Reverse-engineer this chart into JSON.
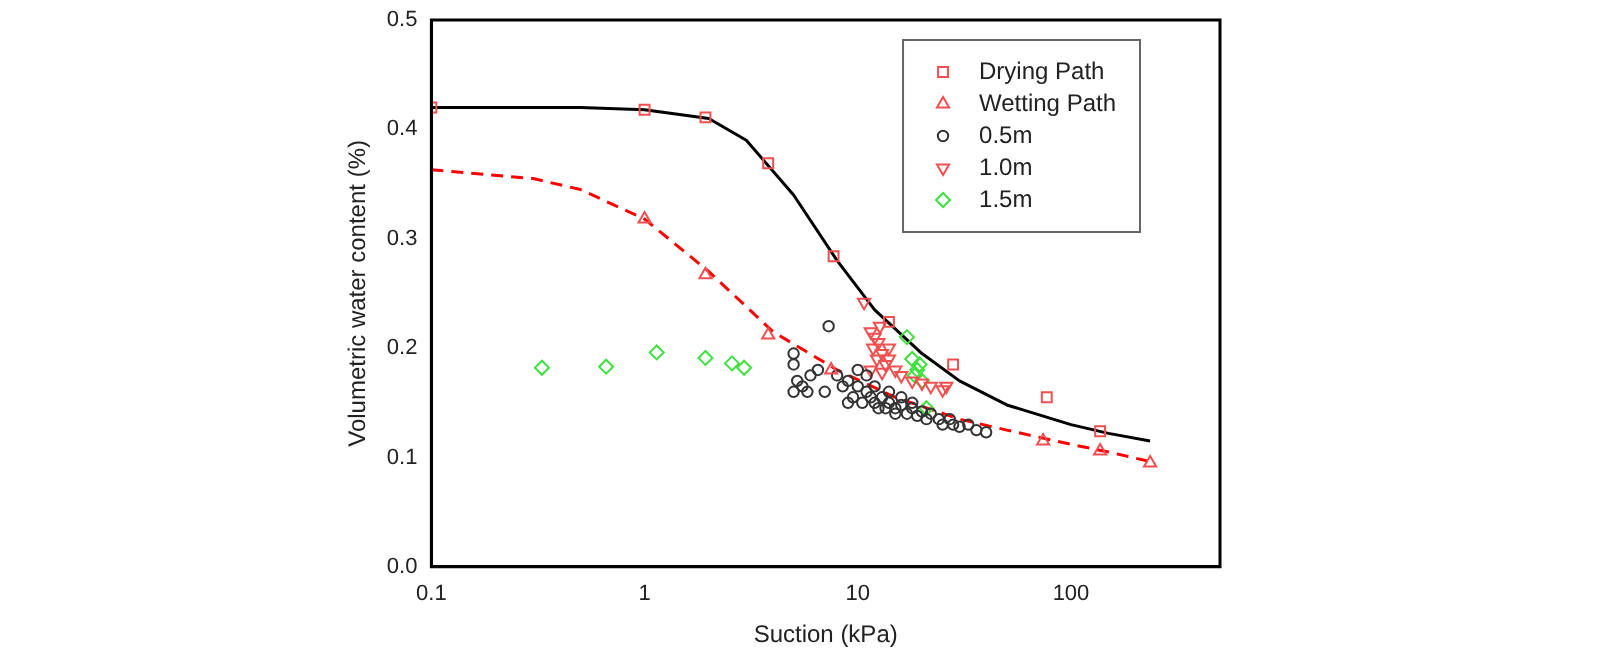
{
  "chart_data": {
    "type": "scatter",
    "xlabel": "Suction (kPa)",
    "ylabel": "Volumetric water content (%)",
    "log": "x",
    "xlim": [
      0.1,
      500
    ],
    "xticks": [
      0.1,
      1,
      10,
      100
    ],
    "ylim": [
      0,
      0.5
    ],
    "yticks": [
      {
        "value": 0,
        "label": "0.0"
      },
      0.1,
      0.2,
      0.3,
      0.4,
      0.5
    ],
    "grid": false,
    "legend": "top right",
    "series": [
      {
        "type": "line",
        "color": "#000000",
        "line_style": "solid",
        "marker": "none",
        "x": [
          0.1,
          0.5,
          1,
          2,
          3,
          5,
          8,
          12,
          20,
          30,
          50,
          100,
          150,
          235
        ],
        "values": [
          0.42,
          0.42,
          0.418,
          0.41,
          0.39,
          0.34,
          0.28,
          0.235,
          0.195,
          0.17,
          0.148,
          0.13,
          0.122,
          0.115
        ]
      },
      {
        "type": "line",
        "color": "#ff0000",
        "line_style": "dashed",
        "marker": "none",
        "x": [
          0.1,
          0.3,
          0.5,
          1,
          2,
          4,
          8,
          15,
          30,
          50,
          100,
          150,
          250
        ],
        "values": [
          0.363,
          0.355,
          0.345,
          0.318,
          0.27,
          0.215,
          0.18,
          0.155,
          0.135,
          0.125,
          0.112,
          0.105,
          0.095
        ]
      },
      {
        "name": "Drying Path",
        "color": "#f05050",
        "marker": "square",
        "x": [
          0.1,
          1,
          1.93,
          3.8,
          7.7,
          14,
          28,
          77,
          137
        ],
        "values": [
          0.42,
          0.418,
          0.411,
          0.369,
          0.284,
          0.224,
          0.185,
          0.155,
          0.124
        ]
      },
      {
        "name": "Wetting Path",
        "color": "#f05050",
        "marker": "triangle",
        "x": [
          1,
          1.93,
          3.8,
          7.5,
          74,
          137,
          235
        ],
        "values": [
          0.318,
          0.267,
          0.212,
          0.18,
          0.115,
          0.106,
          0.095
        ]
      },
      {
        "name": "0.5m",
        "color": "#333333",
        "marker": "circle",
        "x": [
          5,
          5,
          5.2,
          5,
          5.5,
          6,
          5.8,
          6.5,
          7,
          7.3,
          8,
          8.5,
          9,
          9.5,
          10,
          10.5,
          11,
          11.5,
          12,
          12.5,
          13,
          13.5,
          14,
          15,
          15,
          16,
          17,
          18,
          19,
          20,
          21,
          22,
          24,
          25,
          27,
          28,
          30,
          33,
          36,
          40,
          10,
          11,
          9,
          12,
          14,
          16,
          18
        ],
        "values": [
          0.195,
          0.185,
          0.17,
          0.16,
          0.165,
          0.175,
          0.16,
          0.18,
          0.16,
          0.22,
          0.175,
          0.165,
          0.17,
          0.155,
          0.165,
          0.15,
          0.16,
          0.155,
          0.15,
          0.145,
          0.155,
          0.145,
          0.15,
          0.145,
          0.14,
          0.148,
          0.14,
          0.145,
          0.138,
          0.142,
          0.135,
          0.14,
          0.135,
          0.13,
          0.135,
          0.13,
          0.128,
          0.13,
          0.125,
          0.123,
          0.18,
          0.175,
          0.15,
          0.165,
          0.16,
          0.155,
          0.15
        ]
      },
      {
        "name": "1.0m",
        "color": "#f05050",
        "marker": "triangle-down",
        "x": [
          10.7,
          11.5,
          12,
          12.5,
          11.8,
          13,
          12.3,
          13.5,
          14,
          15,
          11.5,
          13,
          16,
          18,
          20,
          22,
          25,
          26,
          12.7,
          14
        ],
        "values": [
          0.242,
          0.215,
          0.21,
          0.205,
          0.2,
          0.195,
          0.19,
          0.185,
          0.19,
          0.18,
          0.18,
          0.178,
          0.175,
          0.17,
          0.168,
          0.165,
          0.162,
          0.165,
          0.22,
          0.2
        ]
      },
      {
        "name": "1.5m",
        "color": "#40e040",
        "marker": "diamond",
        "x": [
          0.33,
          0.66,
          1.14,
          1.93,
          2.57,
          2.93,
          17,
          18,
          19,
          18.5,
          20,
          21,
          19.5
        ],
        "values": [
          0.182,
          0.183,
          0.196,
          0.191,
          0.186,
          0.182,
          0.21,
          0.19,
          0.18,
          0.175,
          0.17,
          0.145,
          0.185
        ]
      }
    ]
  }
}
